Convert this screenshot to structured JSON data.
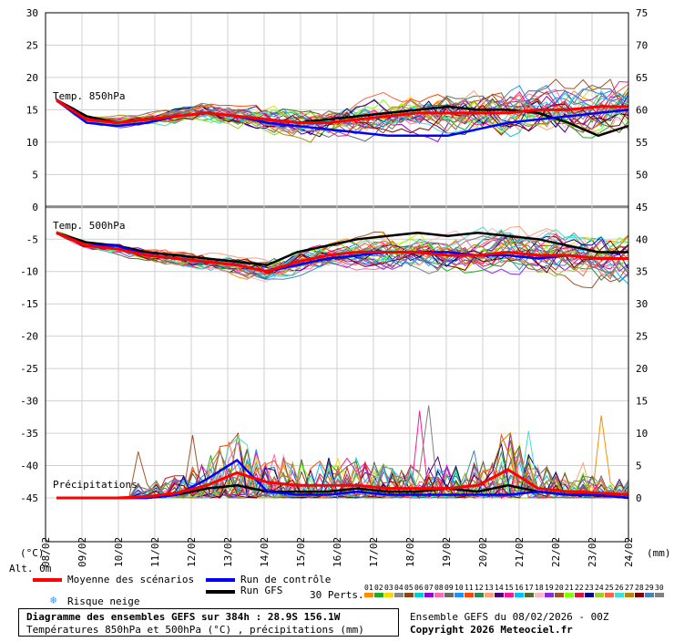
{
  "chart_data": {
    "type": "line",
    "x_dates": [
      "08/02",
      "09/02",
      "10/02",
      "11/02",
      "12/02",
      "13/02",
      "14/02",
      "15/02",
      "16/02",
      "17/02",
      "18/02",
      "19/02",
      "20/02",
      "21/02",
      "22/02",
      "23/02",
      "24/02"
    ],
    "left_axis_ticks": [
      30,
      25,
      20,
      15,
      10,
      5,
      0,
      -5,
      -10,
      -15,
      -20,
      -25,
      -30,
      -35,
      -40,
      -45
    ],
    "right_axis_ticks": [
      75,
      70,
      65,
      60,
      55,
      50,
      45,
      40,
      35,
      30,
      25,
      20,
      15,
      10,
      5,
      0
    ],
    "left_unit": "(°C)",
    "right_unit": "(mm)",
    "alt_label": "Alt. 0m",
    "panels": {
      "t850": "Temp. 850hPa",
      "t500": "Temp. 500hPa",
      "precip": "Précipitations"
    },
    "series": [
      {
        "name": "Moyenne des scénarios",
        "color": "#ff0000",
        "t850": [
          16.5,
          13.5,
          13,
          13.5,
          14,
          14.5,
          14,
          13.5,
          13,
          13,
          13.5,
          14,
          14.5,
          14.5,
          14.5,
          14.5,
          15,
          15,
          15.5,
          15.5
        ],
        "t500": [
          -4,
          -6,
          -6.5,
          -7.5,
          -8,
          -8.5,
          -9,
          -10,
          -8.5,
          -7.5,
          -7,
          -7,
          -7,
          -7.5,
          -7.5,
          -7,
          -7.5,
          -7.5,
          -8,
          -8
        ],
        "precip": [
          0,
          0,
          0,
          0.2,
          0.8,
          2,
          4,
          2.5,
          2,
          2,
          2,
          1.5,
          1.5,
          1.5,
          2,
          4.5,
          1.5,
          1,
          0.8,
          0.5
        ]
      },
      {
        "name": "Run de contrôle",
        "color": "#0000ff",
        "t850": [
          16.5,
          13,
          12.5,
          13,
          14,
          14.5,
          14,
          13,
          12.5,
          12,
          11.5,
          11,
          11,
          11,
          12,
          13,
          13.5,
          14,
          14.5,
          15
        ],
        "t500": [
          -4,
          -6,
          -6,
          -7.5,
          -8,
          -8.5,
          -9,
          -10,
          -9,
          -8,
          -7.5,
          -7,
          -7,
          -7,
          -7.5,
          -7.5,
          -8,
          -7.5,
          -8,
          -8
        ],
        "precip": [
          0,
          0,
          0,
          0,
          0.5,
          3,
          6,
          1,
          0.5,
          0.5,
          1,
          0.5,
          0.5,
          0.5,
          0.5,
          0.5,
          1,
          0.5,
          0.5,
          0
        ]
      },
      {
        "name": "Run GFS",
        "color": "#000000",
        "t850": [
          16.5,
          14,
          13,
          13.5,
          14,
          14.5,
          14,
          13.5,
          13,
          13.5,
          14,
          14.5,
          15,
          15.5,
          15,
          15,
          14.5,
          13,
          11,
          12.5
        ],
        "t500": [
          -4,
          -5.5,
          -6,
          -7,
          -7.5,
          -8,
          -8.5,
          -9,
          -7,
          -6,
          -5,
          -4.5,
          -4,
          -4.5,
          -4,
          -4.5,
          -5,
          -6,
          -7,
          -7
        ],
        "precip": [
          0,
          0,
          0,
          0,
          0.5,
          1.5,
          2,
          1,
          1,
          1,
          1.5,
          1,
          1,
          1.5,
          1,
          2,
          1,
          0.5,
          0.5,
          0
        ]
      }
    ]
  },
  "legend": {
    "mean": "Moyenne des scénarios",
    "control": "Run de contrôle",
    "gfs": "Run GFS",
    "snow": "Risque neige",
    "perts_label": "30 Perts.",
    "perts": [
      "01",
      "02",
      "03",
      "04",
      "05",
      "06",
      "07",
      "08",
      "09",
      "10",
      "11",
      "12",
      "13",
      "14",
      "15",
      "16",
      "17",
      "18",
      "19",
      "20",
      "21",
      "22",
      "23",
      "24",
      "25",
      "26",
      "27",
      "28",
      "29",
      "30"
    ],
    "pert_colors": [
      "#ff8c00",
      "#22aa22",
      "#ffd700",
      "#888888",
      "#8b4513",
      "#00ced1",
      "#9400d3",
      "#ff69b4",
      "#696969",
      "#1e90ff",
      "#ff4500",
      "#2e8b57",
      "#ffa07a",
      "#4b0082",
      "#ff1493",
      "#00bfff",
      "#556b2f",
      "#ffb6c1",
      "#8a2be2",
      "#a0522d",
      "#7fff00",
      "#dc143c",
      "#00008b",
      "#9acd32",
      "#ff6347",
      "#40e0d0",
      "#b8860b",
      "#800000",
      "#4682b4",
      "#808080"
    ]
  },
  "footer": {
    "title": "Diagramme des ensembles GEFS sur 384h : 28.9S 156.1W",
    "subtitle": "Températures 850hPa et 500hPa (°C) , précipitations (mm)",
    "info": "Ensemble GEFS du 08/02/2026 - 00Z",
    "copyright": "Copyright 2026 Meteociel.fr"
  }
}
